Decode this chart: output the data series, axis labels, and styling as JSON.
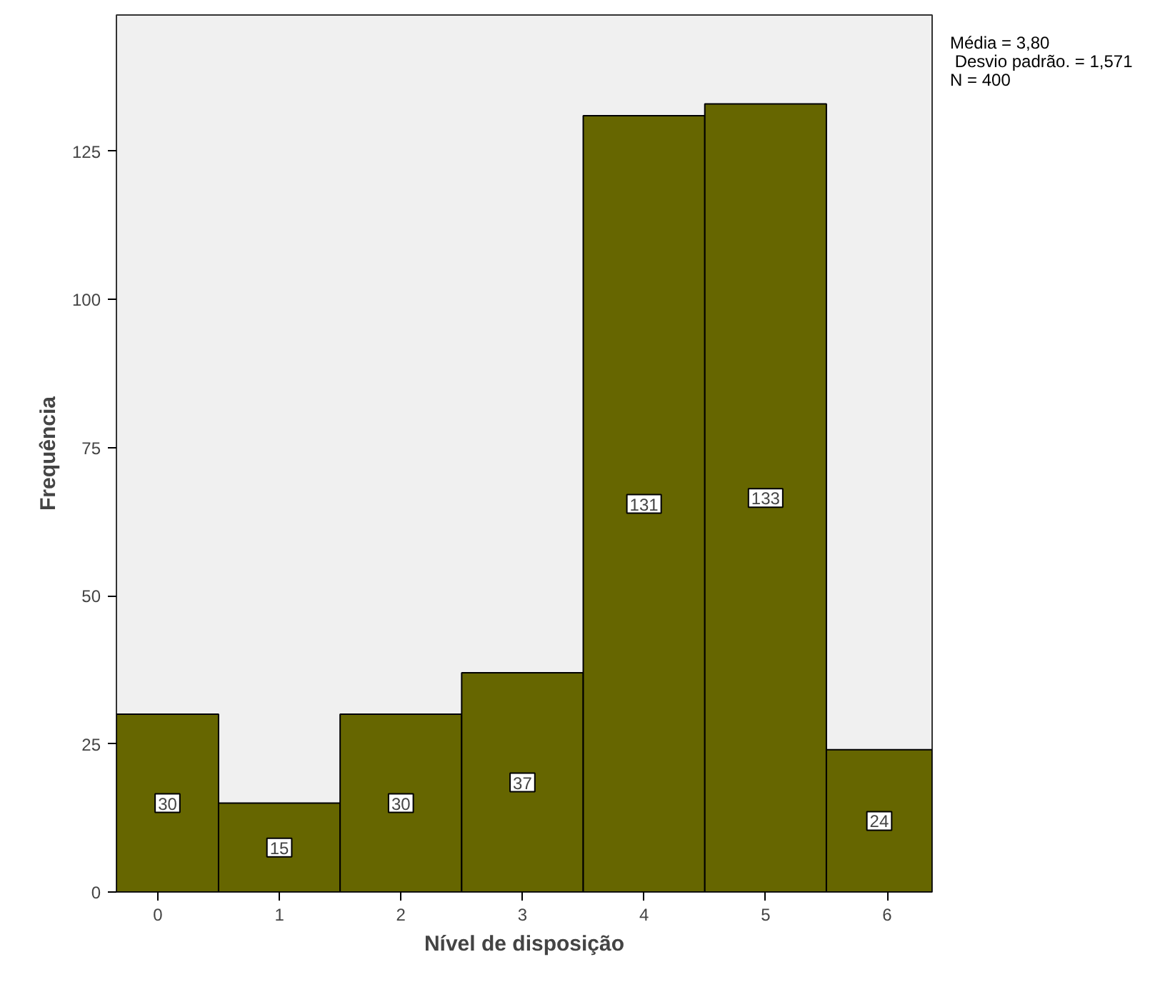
{
  "chart_data": {
    "type": "histogram",
    "xlabel": "Nível de disposição",
    "ylabel": "Frequência",
    "bins": [
      -0.34,
      0.5,
      1.5,
      2.5,
      3.5,
      4.5,
      5.5,
      6.37
    ],
    "values": [
      30,
      15,
      30,
      37,
      131,
      133,
      24
    ],
    "color": "#666600",
    "xlim": [
      -0.34,
      6.37
    ],
    "xticks": [
      0,
      1,
      2,
      3,
      4,
      5,
      6
    ],
    "ylim": [
      0,
      148
    ],
    "yticks": [
      0,
      25,
      50,
      75,
      100,
      125
    ],
    "grid": false,
    "data_labels": true,
    "annotations": [
      "Média = 3,80",
      " Desvio padrão. = 1,571",
      "N = 400"
    ]
  }
}
